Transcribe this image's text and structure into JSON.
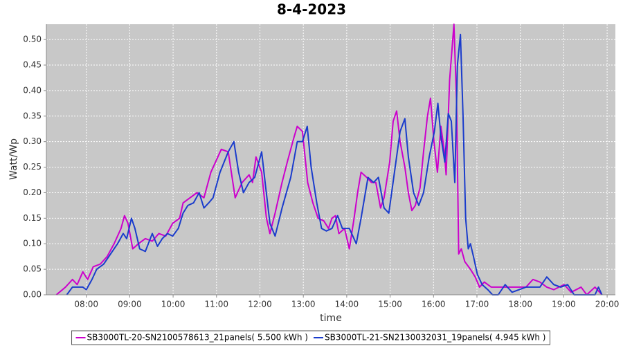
{
  "chart_data": {
    "type": "line",
    "title": "8-4-2023",
    "x_label": "time",
    "y_label": "Watt/Wp",
    "xlim": [
      7.08,
      20.19
    ],
    "ylim": [
      0,
      0.53
    ],
    "grid": true,
    "legend": "bottom",
    "xticks": [
      {
        "value": 8,
        "label": "08:00"
      },
      {
        "value": 9,
        "label": "09:00"
      },
      {
        "value": 10,
        "label": "10:00"
      },
      {
        "value": 11,
        "label": "11:00"
      },
      {
        "value": 12,
        "label": "12:00"
      },
      {
        "value": 13,
        "label": "13:00"
      },
      {
        "value": 14,
        "label": "14:00"
      },
      {
        "value": 15,
        "label": "15:00"
      },
      {
        "value": 16,
        "label": "16:00"
      },
      {
        "value": 17,
        "label": "17:00"
      },
      {
        "value": 18,
        "label": "18:00"
      },
      {
        "value": 19,
        "label": "19:00"
      },
      {
        "value": 20,
        "label": "20:00"
      }
    ],
    "yticks": [
      {
        "value": 0,
        "label": "0.00"
      },
      {
        "value": 0.05,
        "label": "0.05"
      },
      {
        "value": 0.1,
        "label": "0.10"
      },
      {
        "value": 0.15,
        "label": "0.15"
      },
      {
        "value": 0.2,
        "label": "0.20"
      },
      {
        "value": 0.25,
        "label": "0.25"
      },
      {
        "value": 0.3,
        "label": "0.30"
      },
      {
        "value": 0.35,
        "label": "0.35"
      },
      {
        "value": 0.4,
        "label": "0.40"
      },
      {
        "value": 0.45,
        "label": "0.45"
      },
      {
        "value": 0.5,
        "label": "0.50"
      }
    ],
    "series": [
      {
        "name": "SB3000TL-20-SN2100578613_21panels( 5.500 kWh )",
        "color": "#cc00cc",
        "x": [
          7.31,
          7.52,
          7.68,
          7.79,
          7.92,
          8.03,
          8.16,
          8.32,
          8.48,
          8.64,
          8.8,
          8.88,
          8.96,
          9.07,
          9.2,
          9.36,
          9.52,
          9.67,
          9.83,
          9.99,
          10.15,
          10.23,
          10.39,
          10.55,
          10.71,
          10.87,
          11.03,
          11.11,
          11.27,
          11.43,
          11.59,
          11.75,
          11.83,
          11.91,
          12.04,
          12.15,
          12.23,
          12.35,
          12.51,
          12.63,
          12.79,
          12.86,
          12.98,
          13.1,
          13.22,
          13.34,
          13.47,
          13.58,
          13.66,
          13.74,
          13.82,
          13.95,
          14.06,
          14.17,
          14.25,
          14.33,
          14.46,
          14.57,
          14.67,
          14.78,
          14.86,
          14.99,
          15.07,
          15.15,
          15.23,
          15.34,
          15.42,
          15.5,
          15.58,
          15.69,
          15.77,
          15.86,
          15.93,
          16.01,
          16.09,
          16.17,
          16.25,
          16.29,
          16.37,
          16.47,
          16.53,
          16.58,
          16.64,
          16.72,
          16.85,
          16.96,
          17.06,
          17.17,
          17.33,
          17.65,
          18.13,
          18.29,
          18.45,
          18.61,
          18.77,
          19.01,
          19.17,
          19.4,
          19.53,
          19.72,
          19.88
        ],
        "values": [
          0,
          0.015,
          0.03,
          0.02,
          0.045,
          0.03,
          0.055,
          0.06,
          0.075,
          0.1,
          0.13,
          0.155,
          0.14,
          0.09,
          0.1,
          0.11,
          0.105,
          0.12,
          0.115,
          0.14,
          0.15,
          0.18,
          0.19,
          0.2,
          0.19,
          0.24,
          0.27,
          0.285,
          0.28,
          0.19,
          0.22,
          0.235,
          0.22,
          0.27,
          0.24,
          0.15,
          0.12,
          0.16,
          0.22,
          0.26,
          0.31,
          0.33,
          0.32,
          0.22,
          0.18,
          0.15,
          0.145,
          0.13,
          0.15,
          0.155,
          0.12,
          0.13,
          0.09,
          0.15,
          0.2,
          0.24,
          0.23,
          0.22,
          0.22,
          0.17,
          0.19,
          0.26,
          0.34,
          0.36,
          0.3,
          0.25,
          0.2,
          0.165,
          0.175,
          0.21,
          0.28,
          0.35,
          0.385,
          0.3,
          0.24,
          0.33,
          0.28,
          0.235,
          0.42,
          0.53,
          0.38,
          0.08,
          0.09,
          0.065,
          0.05,
          0.035,
          0.015,
          0.025,
          0.015,
          0.015,
          0.015,
          0.03,
          0.025,
          0.015,
          0.01,
          0.02,
          0.005,
          0.015,
          0,
          0.015,
          0
        ]
      },
      {
        "name": "SB3000TL-21-SN2130032031_19panels( 4.945 kWh )",
        "color": "#1a3ccc",
        "x": [
          7.55,
          7.68,
          7.92,
          8.0,
          8.13,
          8.24,
          8.4,
          8.56,
          8.72,
          8.85,
          8.93,
          9.04,
          9.12,
          9.23,
          9.36,
          9.52,
          9.64,
          9.75,
          9.87,
          9.99,
          10.12,
          10.23,
          10.34,
          10.47,
          10.6,
          10.71,
          10.82,
          10.92,
          11.08,
          11.27,
          11.4,
          11.51,
          11.62,
          11.75,
          11.88,
          12.04,
          12.12,
          12.23,
          12.35,
          12.51,
          12.71,
          12.86,
          12.98,
          13.09,
          13.18,
          13.31,
          13.42,
          13.53,
          13.66,
          13.79,
          13.9,
          14.06,
          14.22,
          14.33,
          14.49,
          14.62,
          14.73,
          14.86,
          14.97,
          15.1,
          15.23,
          15.34,
          15.42,
          15.54,
          15.66,
          15.77,
          15.9,
          16.02,
          16.1,
          16.17,
          16.26,
          16.34,
          16.41,
          16.49,
          16.55,
          16.62,
          16.68,
          16.74,
          16.8,
          16.85,
          16.92,
          17.01,
          17.12,
          17.25,
          17.36,
          17.49,
          17.65,
          17.81,
          18.13,
          18.45,
          18.61,
          18.77,
          18.93,
          19.09,
          19.24,
          19.56,
          19.72,
          19.8,
          19.88
        ],
        "values": [
          0,
          0.015,
          0.015,
          0.01,
          0.03,
          0.05,
          0.06,
          0.08,
          0.1,
          0.12,
          0.11,
          0.15,
          0.13,
          0.09,
          0.085,
          0.12,
          0.095,
          0.11,
          0.12,
          0.115,
          0.13,
          0.16,
          0.175,
          0.18,
          0.2,
          0.17,
          0.18,
          0.19,
          0.24,
          0.28,
          0.3,
          0.24,
          0.2,
          0.22,
          0.23,
          0.28,
          0.22,
          0.14,
          0.115,
          0.17,
          0.23,
          0.3,
          0.3,
          0.33,
          0.25,
          0.18,
          0.13,
          0.125,
          0.13,
          0.155,
          0.13,
          0.13,
          0.1,
          0.15,
          0.23,
          0.22,
          0.23,
          0.17,
          0.16,
          0.24,
          0.32,
          0.345,
          0.27,
          0.2,
          0.175,
          0.2,
          0.27,
          0.32,
          0.375,
          0.31,
          0.26,
          0.355,
          0.34,
          0.22,
          0.45,
          0.51,
          0.35,
          0.15,
          0.09,
          0.1,
          0.075,
          0.04,
          0.02,
          0.01,
          0,
          0,
          0.02,
          0.005,
          0.015,
          0.015,
          0.035,
          0.02,
          0.015,
          0.02,
          0,
          0,
          0,
          0.015,
          0
        ]
      }
    ]
  }
}
